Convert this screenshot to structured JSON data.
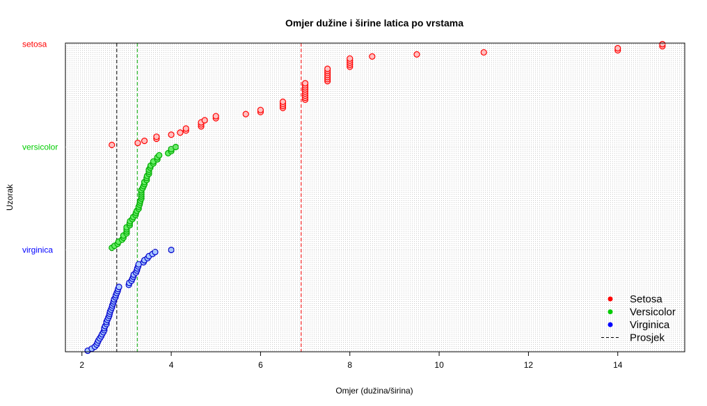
{
  "chart_data": {
    "type": "scatter",
    "title": "Omjer dužine i širine latica po vrstama",
    "xlabel": "Omjer (dužina/širina)",
    "ylabel": "Uzorak",
    "xlim": [
      1.63,
      15.5
    ],
    "xticks": [
      2,
      4,
      6,
      8,
      10,
      12,
      14
    ],
    "ylim": [
      0.5,
      150.5
    ],
    "grid": true,
    "group_labels": [
      {
        "text": "setosa",
        "color": "#ff0000",
        "y": 150
      },
      {
        "text": "versicolor",
        "color": "#00cc00",
        "y": 100
      },
      {
        "text": "virginica",
        "color": "#0000ff",
        "y": 50
      }
    ],
    "series": [
      {
        "name": "Setosa",
        "edge": "#ff0000",
        "fill": "#ffc0c0",
        "y_start": 101,
        "x": [
          2.67,
          3.25,
          3.4,
          3.67,
          3.67,
          4.0,
          4.2,
          4.33,
          4.33,
          4.67,
          4.67,
          4.67,
          4.75,
          5.0,
          5.0,
          5.67,
          6.0,
          6.0,
          6.5,
          6.5,
          6.5,
          6.5,
          7.0,
          7.0,
          7.0,
          7.0,
          7.0,
          7.0,
          7.0,
          7.0,
          7.0,
          7.5,
          7.5,
          7.5,
          7.5,
          7.5,
          7.5,
          7.5,
          8.0,
          8.0,
          8.0,
          8.0,
          8.0,
          8.5,
          9.5,
          11.0,
          14.0,
          14.0,
          15.0,
          15.0
        ]
      },
      {
        "name": "Versicolor",
        "edge": "#00aa00",
        "fill": "#66ee66",
        "y_start": 51,
        "x": [
          2.67,
          2.73,
          2.8,
          2.82,
          2.9,
          2.93,
          2.93,
          3.0,
          3.0,
          3.0,
          3.0,
          3.07,
          3.07,
          3.08,
          3.13,
          3.15,
          3.2,
          3.21,
          3.23,
          3.27,
          3.27,
          3.29,
          3.3,
          3.31,
          3.33,
          3.33,
          3.33,
          3.33,
          3.33,
          3.36,
          3.38,
          3.4,
          3.4,
          3.45,
          3.45,
          3.46,
          3.5,
          3.5,
          3.5,
          3.53,
          3.54,
          3.6,
          3.6,
          3.69,
          3.69,
          3.73,
          3.93,
          4.0,
          4.0,
          4.1
        ]
      },
      {
        "name": "Virginica",
        "edge": "#0000cc",
        "fill": "#a8c8ff",
        "y_start": 1,
        "x": [
          2.13,
          2.22,
          2.29,
          2.33,
          2.35,
          2.37,
          2.4,
          2.43,
          2.45,
          2.48,
          2.5,
          2.5,
          2.52,
          2.55,
          2.55,
          2.57,
          2.59,
          2.61,
          2.62,
          2.63,
          2.65,
          2.67,
          2.68,
          2.7,
          2.71,
          2.72,
          2.75,
          2.76,
          2.78,
          2.8,
          2.81,
          2.83,
          3.05,
          3.06,
          3.11,
          3.13,
          3.15,
          3.16,
          3.21,
          3.23,
          3.24,
          3.26,
          3.27,
          3.38,
          3.4,
          3.47,
          3.5,
          3.58,
          3.64,
          4.0
        ]
      }
    ],
    "mean_lines": [
      {
        "x": 2.78,
        "color": "#000000"
      },
      {
        "x": 3.24,
        "color": "#00aa00"
      },
      {
        "x": 6.91,
        "color": "#ff0000"
      }
    ],
    "legend": {
      "placement": "bottom-right",
      "entries": [
        {
          "label": "Setosa",
          "kind": "point",
          "color": "#ff0000"
        },
        {
          "label": "Versicolor",
          "kind": "point",
          "color": "#00cc00"
        },
        {
          "label": "Virginica",
          "kind": "point",
          "color": "#0000ff"
        },
        {
          "label": "Prosjek",
          "kind": "dashed-line",
          "color": "#000000"
        }
      ]
    }
  }
}
